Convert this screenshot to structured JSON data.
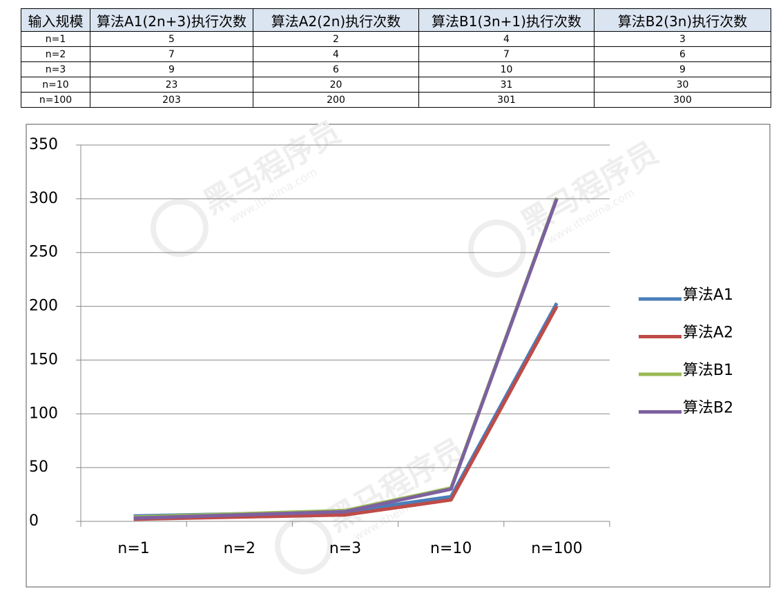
{
  "table": {
    "header": [
      "输入规模",
      "算法A1(2n+3)执行次数",
      "算法A2(2n)执行次数",
      "算法B1(3n+1)执行次数",
      "算法B2(3n)执行次数"
    ],
    "rows": [
      [
        "n=1",
        5,
        2,
        4,
        3
      ],
      [
        "n=2",
        7,
        4,
        7,
        6
      ],
      [
        "n=3",
        9,
        6,
        10,
        9
      ],
      [
        "n=10",
        23,
        20,
        31,
        30
      ],
      [
        "n=100",
        203,
        200,
        301,
        300
      ]
    ]
  },
  "watermark": {
    "brand": "黑马程序员",
    "url": "www.itheima.com"
  },
  "chart_data": {
    "type": "line",
    "categories": [
      "n=1",
      "n=2",
      "n=3",
      "n=10",
      "n=100"
    ],
    "series": [
      {
        "name": "算法A1",
        "color": "#4a7ebb",
        "values": [
          5,
          7,
          9,
          23,
          203
        ]
      },
      {
        "name": "算法A2",
        "color": "#be4b48",
        "values": [
          2,
          4,
          6,
          20,
          200
        ]
      },
      {
        "name": "算法B1",
        "color": "#98b954",
        "values": [
          4,
          7,
          10,
          31,
          301
        ]
      },
      {
        "name": "算法B2",
        "color": "#7d60a0",
        "values": [
          3,
          6,
          9,
          30,
          300
        ]
      }
    ],
    "ylim": [
      0,
      350
    ],
    "yticks": [
      0,
      50,
      100,
      150,
      200,
      250,
      300,
      350
    ],
    "grid": true,
    "legend": "right"
  }
}
